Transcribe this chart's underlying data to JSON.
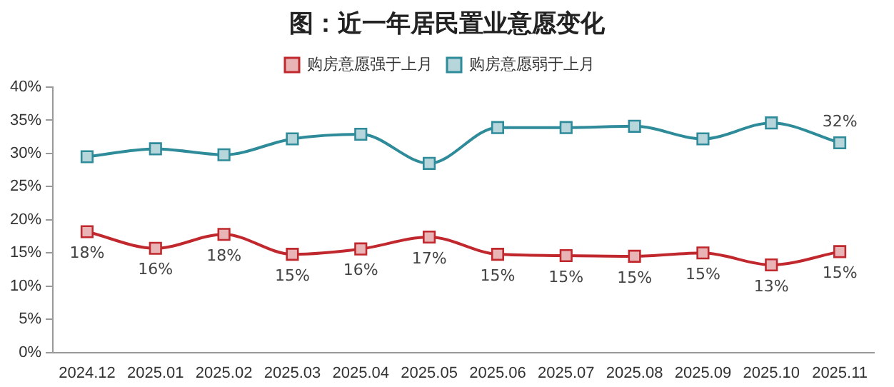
{
  "chart_data": {
    "type": "line",
    "title": "图：近一年居民置业意愿变化",
    "categories": [
      "2024.12",
      "2025.01",
      "2025.02",
      "2025.03",
      "2025.04",
      "2025.05",
      "2025.06",
      "2025.07",
      "2025.08",
      "2025.09",
      "2025.10",
      "2025.11"
    ],
    "series": [
      {
        "name": "购房意愿强于上月",
        "color": "#c0282d",
        "values": [
          18.2,
          15.7,
          17.8,
          14.8,
          15.6,
          17.4,
          14.8,
          14.6,
          14.5,
          15.0,
          13.2,
          15.2
        ],
        "value_labels": [
          "18%",
          "16%",
          "18%",
          "15%",
          "16%",
          "17%",
          "15%",
          "15%",
          "15%",
          "15%",
          "13%",
          "15%"
        ]
      },
      {
        "name": "购房意愿弱于上月",
        "color": "#2e8b9a",
        "values": [
          29.5,
          30.7,
          29.8,
          32.2,
          32.9,
          28.5,
          33.9,
          33.9,
          34.1,
          32.2,
          34.6,
          31.6
        ],
        "value_labels": [
          null,
          null,
          null,
          null,
          null,
          null,
          null,
          null,
          null,
          null,
          null,
          "32%"
        ]
      }
    ],
    "ylim": [
      0,
      40
    ],
    "yticks": [
      {
        "value": 0,
        "label": "0%"
      },
      {
        "value": 5,
        "label": "5%"
      },
      {
        "value": 10,
        "label": "10%"
      },
      {
        "value": 15,
        "label": "15%"
      },
      {
        "value": 20,
        "label": "20%"
      },
      {
        "value": 25,
        "label": "25%"
      },
      {
        "value": 30,
        "label": "30%"
      },
      {
        "value": 35,
        "label": "35%"
      },
      {
        "value": 40,
        "label": "40%"
      }
    ],
    "grid": false,
    "legend": "top",
    "marker": "square",
    "line_style": "solid"
  }
}
